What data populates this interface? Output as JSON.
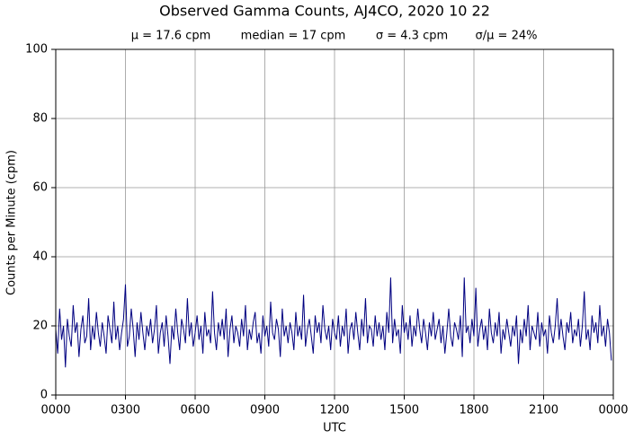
{
  "chart_data": {
    "type": "line",
    "title": "Observed Gamma Counts, AJ4CO, 2020 10 22",
    "stats": [
      "μ = 17.6 cpm",
      "median = 17 cpm",
      "σ = 4.3 cpm",
      "σ/μ = 24%"
    ],
    "xlabel": "UTC",
    "ylabel": "Counts per Minute (cpm)",
    "xlim": [
      0,
      1440
    ],
    "ylim": [
      0,
      100
    ],
    "xticks": [
      {
        "value": 0,
        "label": "0000"
      },
      {
        "value": 180,
        "label": "0300"
      },
      {
        "value": 360,
        "label": "0600"
      },
      {
        "value": 540,
        "label": "0900"
      },
      {
        "value": 720,
        "label": "1200"
      },
      {
        "value": 900,
        "label": "1500"
      },
      {
        "value": 1080,
        "label": "1800"
      },
      {
        "value": 1260,
        "label": "2100"
      },
      {
        "value": 1440,
        "label": "0000"
      }
    ],
    "yticks": [
      0,
      20,
      40,
      60,
      80,
      100
    ],
    "grid": true,
    "x": [
      0,
      5,
      10,
      15,
      20,
      25,
      30,
      35,
      40,
      45,
      50,
      55,
      60,
      65,
      70,
      75,
      80,
      85,
      90,
      95,
      100,
      105,
      110,
      115,
      120,
      125,
      130,
      135,
      140,
      145,
      150,
      155,
      160,
      165,
      170,
      175,
      180,
      185,
      190,
      195,
      200,
      205,
      210,
      215,
      220,
      225,
      230,
      235,
      240,
      245,
      250,
      255,
      260,
      265,
      270,
      275,
      280,
      285,
      290,
      295,
      300,
      305,
      310,
      315,
      320,
      325,
      330,
      335,
      340,
      345,
      350,
      355,
      360,
      365,
      370,
      375,
      380,
      385,
      390,
      395,
      400,
      405,
      410,
      415,
      420,
      425,
      430,
      435,
      440,
      445,
      450,
      455,
      460,
      465,
      470,
      475,
      480,
      485,
      490,
      495,
      500,
      505,
      510,
      515,
      520,
      525,
      530,
      535,
      540,
      545,
      550,
      555,
      560,
      565,
      570,
      575,
      580,
      585,
      590,
      595,
      600,
      605,
      610,
      615,
      620,
      625,
      630,
      635,
      640,
      645,
      650,
      655,
      660,
      665,
      670,
      675,
      680,
      685,
      690,
      695,
      700,
      705,
      710,
      715,
      720,
      725,
      730,
      735,
      740,
      745,
      750,
      755,
      760,
      765,
      770,
      775,
      780,
      785,
      790,
      795,
      800,
      805,
      810,
      815,
      820,
      825,
      830,
      835,
      840,
      845,
      850,
      855,
      860,
      865,
      870,
      875,
      880,
      885,
      890,
      895,
      900,
      905,
      910,
      915,
      920,
      925,
      930,
      935,
      940,
      945,
      950,
      955,
      960,
      965,
      970,
      975,
      980,
      985,
      990,
      995,
      1000,
      1005,
      1010,
      1015,
      1020,
      1025,
      1030,
      1035,
      1040,
      1045,
      1050,
      1055,
      1060,
      1065,
      1070,
      1075,
      1080,
      1085,
      1090,
      1095,
      1100,
      1105,
      1110,
      1115,
      1120,
      1125,
      1130,
      1135,
      1140,
      1145,
      1150,
      1155,
      1160,
      1165,
      1170,
      1175,
      1180,
      1185,
      1190,
      1195,
      1200,
      1205,
      1210,
      1215,
      1220,
      1225,
      1230,
      1235,
      1240,
      1245,
      1250,
      1255,
      1260,
      1265,
      1270,
      1275,
      1280,
      1285,
      1290,
      1295,
      1300,
      1305,
      1310,
      1315,
      1320,
      1325,
      1330,
      1335,
      1340,
      1345,
      1350,
      1355,
      1360,
      1365,
      1370,
      1375,
      1380,
      1385,
      1390,
      1395,
      1400,
      1405,
      1410,
      1415,
      1420,
      1425,
      1430,
      1435
    ],
    "series": [
      {
        "color": "#000080",
        "values": [
          19,
          12,
          25,
          16,
          20,
          8,
          22,
          17,
          14,
          26,
          18,
          21,
          11,
          19,
          23,
          15,
          17,
          28,
          13,
          20,
          16,
          24,
          18,
          14,
          21,
          17,
          12,
          23,
          19,
          15,
          27,
          16,
          20,
          13,
          18,
          22,
          32,
          14,
          17,
          25,
          19,
          11,
          21,
          16,
          24,
          18,
          13,
          20,
          17,
          22,
          15,
          19,
          26,
          12,
          18,
          21,
          14,
          23,
          17,
          9,
          20,
          16,
          25,
          18,
          13,
          22,
          19,
          15,
          28,
          17,
          21,
          14,
          18,
          23,
          16,
          20,
          12,
          24,
          17,
          19,
          15,
          30,
          18,
          13,
          21,
          17,
          22,
          16,
          25,
          11,
          19,
          23,
          15,
          20,
          18,
          14,
          22,
          17,
          26,
          13,
          19,
          16,
          21,
          24,
          15,
          18,
          12,
          23,
          17,
          20,
          14,
          27,
          18,
          16,
          22,
          19,
          11,
          25,
          17,
          20,
          15,
          21,
          18,
          13,
          24,
          17,
          20,
          16,
          29,
          14,
          19,
          22,
          17,
          12,
          23,
          18,
          21,
          15,
          26,
          19,
          16,
          20,
          13,
          22,
          18,
          16,
          23,
          14,
          20,
          17,
          25,
          12,
          19,
          21,
          16,
          24,
          18,
          13,
          22,
          17,
          28,
          15,
          20,
          19,
          14,
          23,
          17,
          21,
          16,
          20,
          13,
          24,
          18,
          34,
          15,
          22,
          17,
          19,
          12,
          26,
          18,
          21,
          16,
          23,
          14,
          20,
          17,
          25,
          19,
          15,
          22,
          18,
          13,
          21,
          17,
          24,
          16,
          19,
          22,
          15,
          20,
          12,
          18,
          25,
          17,
          14,
          21,
          19,
          16,
          23,
          11,
          34,
          18,
          20,
          15,
          22,
          17,
          31,
          14,
          19,
          22,
          16,
          20,
          13,
          25,
          18,
          15,
          21,
          17,
          24,
          12,
          19,
          16,
          22,
          18,
          14,
          20,
          17,
          23,
          9,
          19,
          15,
          22,
          17,
          26,
          13,
          20,
          18,
          16,
          24,
          14,
          21,
          17,
          19,
          12,
          23,
          18,
          15,
          20,
          28,
          16,
          22,
          17,
          13,
          21,
          18,
          24,
          15,
          19,
          17,
          22,
          14,
          20,
          30,
          16,
          19,
          13,
          23,
          18,
          21,
          15,
          26,
          17,
          20,
          14,
          22,
          18,
          10
        ]
      }
    ]
  }
}
